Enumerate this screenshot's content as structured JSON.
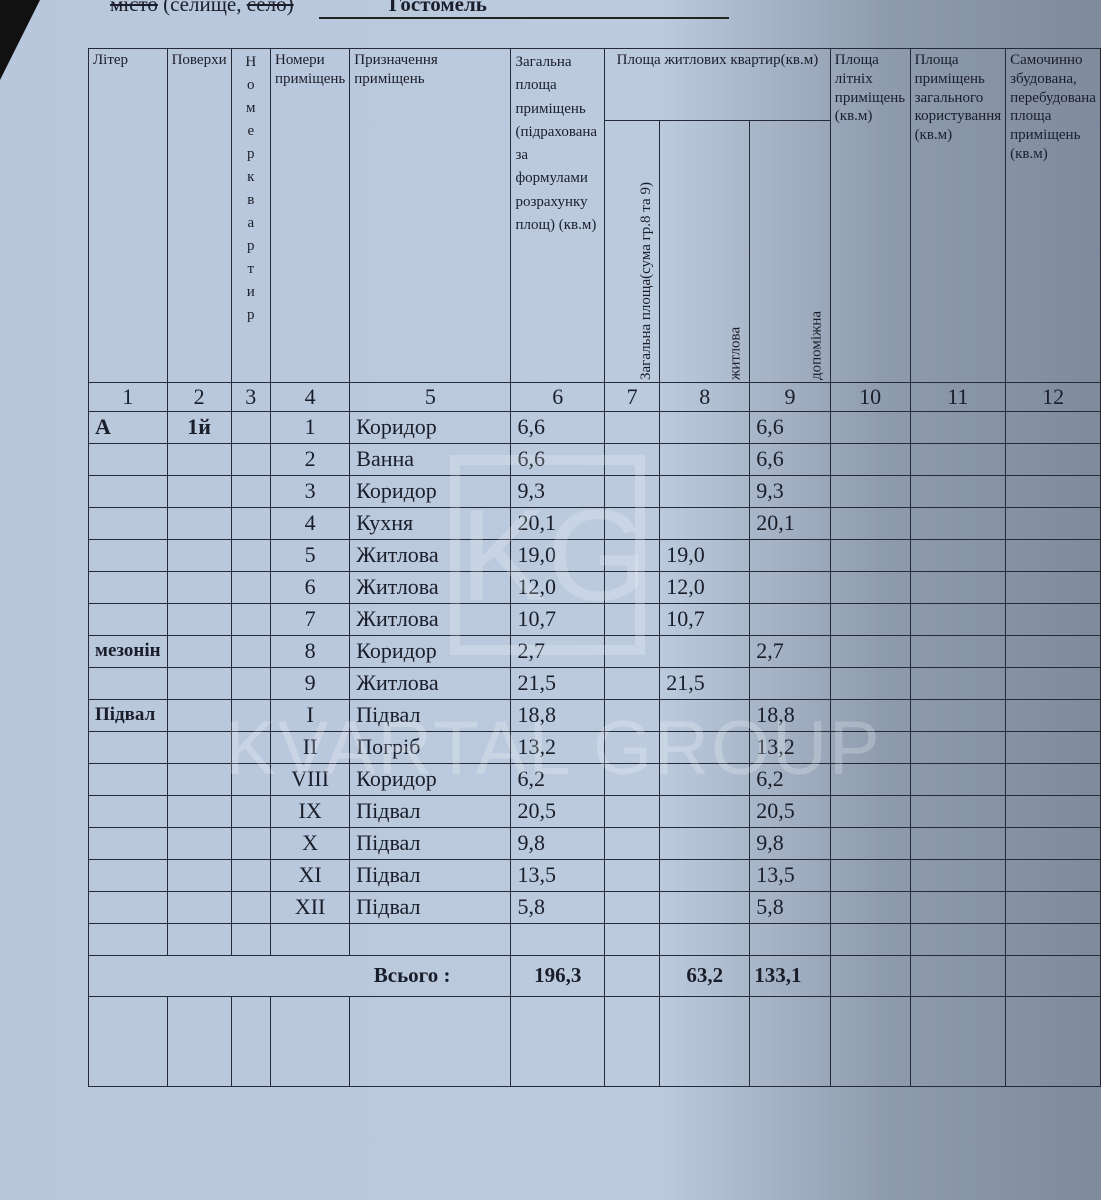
{
  "header": {
    "city_label_struck": "місто",
    "city_label": "(селище,",
    "village_struck": "село)",
    "city_name": "Гостомель"
  },
  "columns": {
    "c1": "Літер",
    "c2": "Поверхи",
    "c3": "Номер квартир",
    "c4": "Номери приміщень",
    "c5": "Призначення приміщень",
    "c6": "Загальна площа приміщень (підрахована за формулами розрахунку площ) (кв.м)",
    "group": "Площа житлових квартир(кв.м)",
    "c7": "Загальна площа(сума гр.8 та 9)",
    "c8": "житлова",
    "c9": "допоміжна",
    "c10": "Площа літніх приміщень (кв.м)",
    "c11": "Площа приміщень загального користування (кв.м)",
    "c12": "Самочинно збудована, перебудована площа приміщень (кв.м)"
  },
  "column_numbers": [
    "1",
    "2",
    "3",
    "4",
    "5",
    "6",
    "7",
    "8",
    "9",
    "10",
    "11",
    "12"
  ],
  "rows": [
    {
      "liter": "А",
      "floor": "1й",
      "no": "1",
      "name": "Коридор",
      "total": "6,6",
      "living": "",
      "aux": "6,6"
    },
    {
      "liter": "",
      "floor": "",
      "no": "2",
      "name": "Ванна",
      "total": "6,6",
      "living": "",
      "aux": "6,6"
    },
    {
      "liter": "",
      "floor": "",
      "no": "3",
      "name": "Коридор",
      "total": "9,3",
      "living": "",
      "aux": "9,3"
    },
    {
      "liter": "",
      "floor": "",
      "no": "4",
      "name": "Кухня",
      "total": "20,1",
      "living": "",
      "aux": "20,1"
    },
    {
      "liter": "",
      "floor": "",
      "no": "5",
      "name": "Житлова",
      "total": "19,0",
      "living": "19,0",
      "aux": ""
    },
    {
      "liter": "",
      "floor": "",
      "no": "6",
      "name": "Житлова",
      "total": "12,0",
      "living": "12,0",
      "aux": ""
    },
    {
      "liter": "",
      "floor": "",
      "no": "7",
      "name": "Житлова",
      "total": "10,7",
      "living": "10,7",
      "aux": ""
    },
    {
      "liter": "мезонін",
      "floor": "",
      "no": "8",
      "name": "Коридор",
      "total": "2,7",
      "living": "",
      "aux": "2,7"
    },
    {
      "liter": "",
      "floor": "",
      "no": "9",
      "name": "Житлова",
      "total": "21,5",
      "living": "21,5",
      "aux": ""
    },
    {
      "liter": "Підвал",
      "floor": "",
      "no": "I",
      "name": "Підвал",
      "total": "18,8",
      "living": "",
      "aux": "18,8"
    },
    {
      "liter": "",
      "floor": "",
      "no": "II",
      "name": "Погріб",
      "total": "13,2",
      "living": "",
      "aux": "13,2"
    },
    {
      "liter": "",
      "floor": "",
      "no": "VIII",
      "name": "Коридор",
      "total": "6,2",
      "living": "",
      "aux": "6,2"
    },
    {
      "liter": "",
      "floor": "",
      "no": "IX",
      "name": "Підвал",
      "total": "20,5",
      "living": "",
      "aux": "20,5"
    },
    {
      "liter": "",
      "floor": "",
      "no": "X",
      "name": "Підвал",
      "total": "9,8",
      "living": "",
      "aux": "9,8"
    },
    {
      "liter": "",
      "floor": "",
      "no": "XI",
      "name": "Підвал",
      "total": "13,5",
      "living": "",
      "aux": "13,5"
    },
    {
      "liter": "",
      "floor": "",
      "no": "XII",
      "name": "Підвал",
      "total": "5,8",
      "living": "",
      "aux": "5,8"
    },
    {
      "liter": "",
      "floor": "",
      "no": "",
      "name": "",
      "total": "",
      "living": "",
      "aux": ""
    }
  ],
  "totals": {
    "label": "Всього :",
    "total": "196,3",
    "living": "63,2",
    "aux": "133,1"
  },
  "watermark": "KVARTAL GROUP",
  "logo": "KG"
}
